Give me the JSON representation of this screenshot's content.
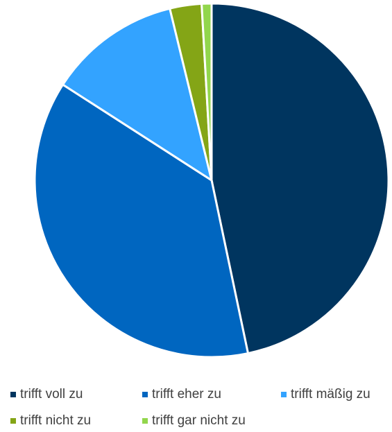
{
  "chart_data": {
    "type": "pie",
    "categories": [
      "trifft voll zu",
      "trifft eher zu",
      "trifft mäßig zu",
      "trifft nicht zu",
      "trifft gar nicht zu"
    ],
    "values": [
      46.7,
      37.4,
      12.1,
      2.9,
      0.9
    ],
    "colors": [
      "#00355f",
      "#0066c0",
      "#33a3ff",
      "#84a516",
      "#92d64d"
    ],
    "legend": "bottom"
  }
}
